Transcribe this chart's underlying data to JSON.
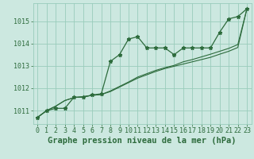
{
  "title": "Graphe pression niveau de la mer (hPa)",
  "background_color": "#cce8e0",
  "plot_bg_color": "#cce8e0",
  "grid_color": "#99ccbb",
  "line_color": "#2d6b3c",
  "xlim": [
    -0.5,
    23.5
  ],
  "ylim": [
    1010.4,
    1015.8
  ],
  "yticks": [
    1011,
    1012,
    1013,
    1014,
    1015
  ],
  "xticks": [
    0,
    1,
    2,
    3,
    4,
    5,
    6,
    7,
    8,
    9,
    10,
    11,
    12,
    13,
    14,
    15,
    16,
    17,
    18,
    19,
    20,
    21,
    22,
    23
  ],
  "series1_x": [
    0,
    1,
    2,
    3,
    4,
    5,
    6,
    7,
    8,
    9,
    10,
    11,
    12,
    13,
    14,
    15,
    16,
    17,
    18,
    19,
    20,
    21,
    22,
    23
  ],
  "series1_y": [
    1010.7,
    1011.0,
    1011.1,
    1011.1,
    1011.6,
    1011.6,
    1011.7,
    1011.75,
    1013.2,
    1013.5,
    1014.2,
    1014.3,
    1013.8,
    1013.8,
    1013.8,
    1013.5,
    1013.8,
    1013.8,
    1013.8,
    1013.8,
    1014.5,
    1015.1,
    1015.2,
    1015.55
  ],
  "series2_x": [
    0,
    1,
    2,
    3,
    4,
    5,
    6,
    7,
    8,
    9,
    10,
    11,
    12,
    13,
    14,
    15,
    16,
    17,
    18,
    19,
    20,
    21,
    22,
    23
  ],
  "series2_y": [
    1010.7,
    1011.0,
    1011.2,
    1011.45,
    1011.58,
    1011.62,
    1011.68,
    1011.72,
    1011.85,
    1012.05,
    1012.25,
    1012.45,
    1012.6,
    1012.75,
    1012.88,
    1012.98,
    1013.08,
    1013.18,
    1013.28,
    1013.38,
    1013.52,
    1013.65,
    1013.82,
    1015.55
  ],
  "series3_x": [
    0,
    1,
    2,
    3,
    4,
    5,
    6,
    7,
    8,
    9,
    10,
    11,
    12,
    13,
    14,
    15,
    16,
    17,
    18,
    19,
    20,
    21,
    22,
    23
  ],
  "series3_y": [
    1010.7,
    1011.0,
    1011.2,
    1011.45,
    1011.58,
    1011.62,
    1011.68,
    1011.72,
    1011.88,
    1012.08,
    1012.28,
    1012.5,
    1012.65,
    1012.8,
    1012.92,
    1013.02,
    1013.18,
    1013.28,
    1013.4,
    1013.52,
    1013.65,
    1013.78,
    1013.95,
    1015.55
  ],
  "title_fontsize": 7.5,
  "tick_fontsize": 6.0
}
